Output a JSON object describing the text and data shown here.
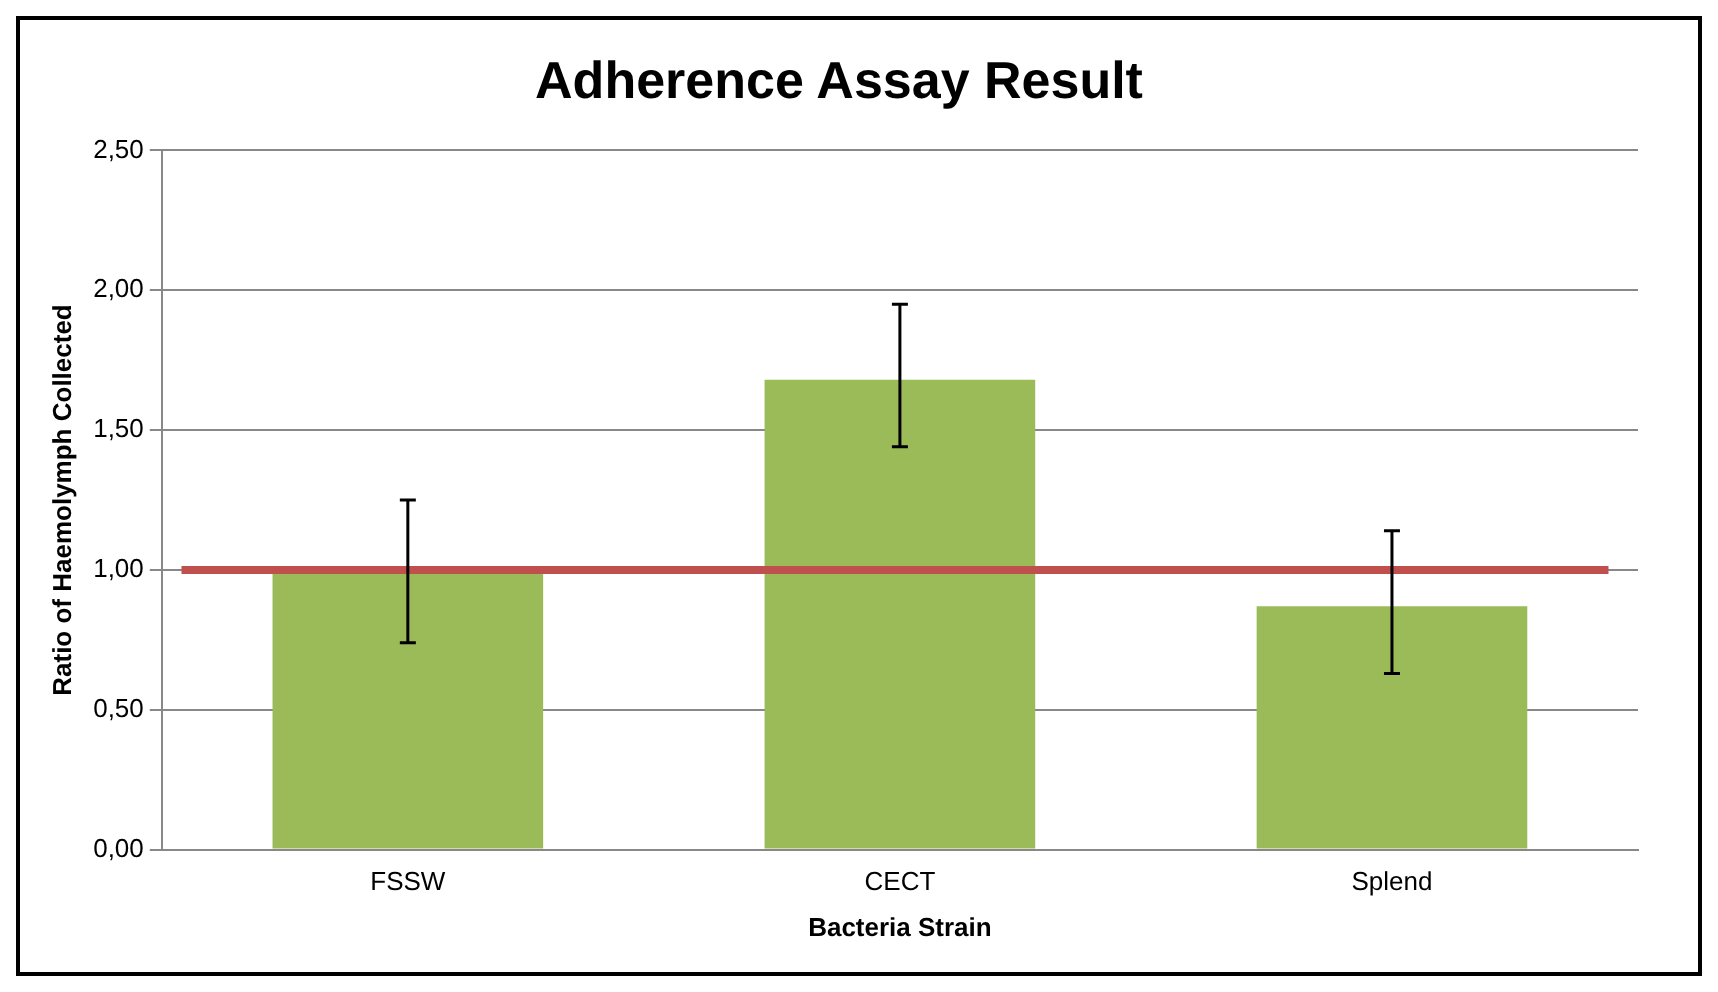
{
  "chart_data": {
    "type": "bar",
    "title": "Adherence Assay Result",
    "xlabel": "Bacteria Strain",
    "ylabel": "Ratio of Haemolymph Collected",
    "categories": [
      "FSSW",
      "CECT",
      "Splend"
    ],
    "series": [
      {
        "color": "#9bbb59",
        "values": [
          1.0,
          1.68,
          0.87
        ],
        "errors": [
          [
            0.74,
            1.25
          ],
          [
            1.44,
            1.95
          ],
          [
            0.63,
            1.14
          ]
        ]
      }
    ],
    "ylim": [
      0,
      2.5
    ],
    "yticks": [
      {
        "value": 0,
        "label": "0,00"
      },
      {
        "value": 0.5,
        "label": "0,50"
      },
      {
        "value": 1,
        "label": "1,00"
      },
      {
        "value": 1.5,
        "label": "1,50"
      },
      {
        "value": 2,
        "label": "2,00"
      },
      {
        "value": 2.5,
        "label": "2,50"
      }
    ],
    "grid": "y",
    "ref_lines": [
      {
        "axis": "y",
        "value": 1.0,
        "color": "#c0504d"
      }
    ]
  }
}
